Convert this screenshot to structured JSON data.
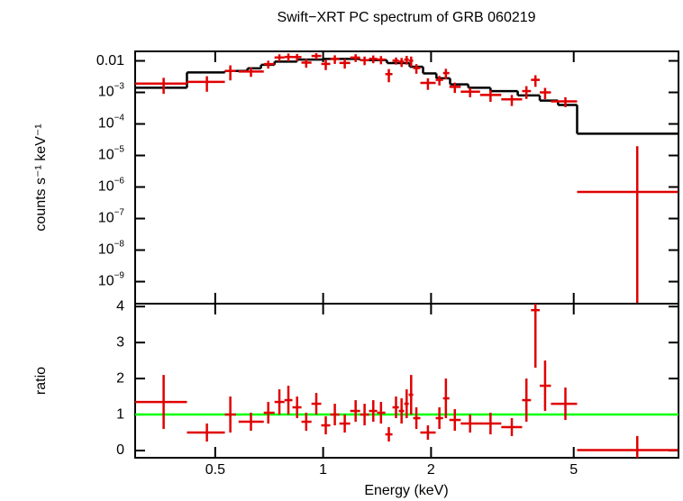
{
  "chart_data": [
    {
      "type": "errorbar",
      "title": "Swift−XRT PC spectrum of GRB 060219",
      "ylabel": "counts s⁻¹ keV⁻¹",
      "xscale": "log",
      "yscale": "log",
      "xlim": [
        0.299,
        9.8
      ],
      "ylim": [
        2e-10,
        0.02
      ],
      "xticks": [
        0.5,
        1,
        2,
        5
      ],
      "xtick_labels": false,
      "yticks": [
        0.01,
        {
          "value": 0.001,
          "label": "10−3"
        },
        {
          "value": 0.0001,
          "label": "10−4"
        },
        {
          "value": 1e-05,
          "label": "10−5"
        },
        {
          "value": 1e-06,
          "label": "10−6"
        },
        {
          "value": 1e-07,
          "label": "10−7"
        },
        {
          "value": 1e-08,
          "label": "10−8"
        },
        {
          "value": 1e-09,
          "label": "10−9"
        }
      ],
      "color": "#e00000",
      "x": [
        0.359,
        0.474,
        0.551,
        0.629,
        0.703,
        0.755,
        0.8,
        0.846,
        0.897,
        0.957,
        1.017,
        1.078,
        1.149,
        1.232,
        1.305,
        1.38,
        1.45,
        1.525,
        1.597,
        1.655,
        1.71,
        1.76,
        1.82,
        1.96,
        2.11,
        2.2,
        2.33,
        2.57,
        2.93,
        3.36,
        3.69,
        3.91,
        4.16,
        4.74,
        7.52
      ],
      "x_low": [
        0.299,
        0.417,
        0.532,
        0.581,
        0.683,
        0.732,
        0.78,
        0.821,
        0.87,
        0.928,
        0.988,
        1.047,
        1.11,
        1.19,
        1.268,
        1.343,
        1.415,
        1.491,
        1.561,
        1.626,
        1.683,
        1.733,
        1.783,
        1.867,
        2.06,
        2.16,
        2.25,
        2.42,
        2.74,
        3.14,
        3.59,
        3.8,
        4.02,
        4.32,
        5.11
      ],
      "x_high": [
        0.417,
        0.532,
        0.571,
        0.683,
        0.732,
        0.78,
        0.821,
        0.87,
        0.928,
        0.988,
        1.047,
        1.11,
        1.19,
        1.268,
        1.343,
        1.415,
        1.491,
        1.561,
        1.626,
        1.683,
        1.733,
        1.783,
        1.867,
        2.06,
        2.16,
        2.25,
        2.42,
        2.74,
        3.14,
        3.59,
        3.8,
        4.02,
        4.32,
        5.11,
        9.77
      ],
      "values": [
        0.0019,
        0.00215,
        0.0048,
        0.0046,
        0.0079,
        0.0128,
        0.0133,
        0.0132,
        0.0088,
        0.0143,
        0.008,
        0.0115,
        0.0086,
        0.0127,
        0.0105,
        0.0116,
        0.011,
        0.0038,
        0.0102,
        0.0094,
        0.011,
        0.0101,
        0.0059,
        0.002,
        0.0025,
        0.0041,
        0.0015,
        0.00105,
        0.00083,
        0.0006,
        0.0011,
        0.0025,
        0.001,
        0.00052,
        7e-07
      ],
      "errors": [
        0.001,
        0.0011,
        0.0024,
        0.0015,
        0.0022,
        0.0033,
        0.0038,
        0.0033,
        0.00275,
        0.0033,
        0.0029,
        0.0035,
        0.0029,
        0.0035,
        0.0032,
        0.0032,
        0.0032,
        0.0017,
        0.0026,
        0.003,
        0.0034,
        0.0036,
        0.002,
        0.0008,
        0.00084,
        0.0015,
        0.00054,
        0.00035,
        0.00033,
        0.00023,
        0.00048,
        0.001,
        0.00039,
        0.00018,
        1.9e-05
      ],
      "model": {
        "color": "#000000",
        "edges": [
          0.299,
          0.417,
          0.532,
          0.615,
          0.671,
          0.732,
          0.846,
          1,
          1.268,
          1.507,
          1.743,
          1.9,
          2.07,
          2.26,
          2.54,
          2.93,
          3.49,
          4.02,
          4.52,
          5.11,
          9.77
        ],
        "values": [
          0.0014,
          0.0043,
          0.0048,
          0.0058,
          0.0075,
          0.0095,
          0.011,
          0.0115,
          0.0105,
          0.0085,
          0.0065,
          0.004,
          0.0028,
          0.0018,
          0.0014,
          0.0011,
          0.0008,
          0.00055,
          0.0004,
          4.9e-05
        ]
      }
    },
    {
      "type": "errorbar",
      "ylabel": "ratio",
      "xlabel": "Energy (keV)",
      "xscale": "log",
      "yscale": "linear",
      "xlim": [
        0.299,
        9.8
      ],
      "ylim": [
        -0.2,
        4.08
      ],
      "xticks": [
        0.5,
        1,
        2,
        5
      ],
      "xtick_labels": true,
      "yticks": [
        0,
        1,
        2,
        3,
        4
      ],
      "color": "#e00000",
      "reference": 1,
      "reference_color": "#00ff00",
      "x": [
        0.359,
        0.474,
        0.551,
        0.629,
        0.703,
        0.755,
        0.8,
        0.846,
        0.897,
        0.957,
        1.017,
        1.078,
        1.149,
        1.232,
        1.305,
        1.38,
        1.45,
        1.525,
        1.597,
        1.655,
        1.71,
        1.76,
        1.82,
        1.96,
        2.11,
        2.2,
        2.33,
        2.57,
        2.93,
        3.36,
        3.69,
        3.91,
        4.16,
        4.74,
        7.52
      ],
      "x_low": [
        0.299,
        0.417,
        0.532,
        0.581,
        0.683,
        0.732,
        0.78,
        0.821,
        0.87,
        0.928,
        0.988,
        1.047,
        1.11,
        1.19,
        1.268,
        1.343,
        1.415,
        1.491,
        1.561,
        1.626,
        1.683,
        1.733,
        1.783,
        1.867,
        2.06,
        2.16,
        2.25,
        2.42,
        2.74,
        3.14,
        3.59,
        3.8,
        4.02,
        4.32,
        5.11
      ],
      "x_high": [
        0.417,
        0.532,
        0.571,
        0.683,
        0.732,
        0.78,
        0.821,
        0.87,
        0.928,
        0.988,
        1.047,
        1.11,
        1.19,
        1.268,
        1.343,
        1.415,
        1.491,
        1.561,
        1.626,
        1.683,
        1.733,
        1.783,
        1.867,
        2.06,
        2.16,
        2.25,
        2.42,
        2.74,
        3.14,
        3.59,
        3.8,
        4.02,
        4.32,
        5.11,
        9.77
      ],
      "values": [
        1.35,
        0.5,
        1.0,
        0.8,
        1.05,
        1.35,
        1.4,
        1.2,
        0.8,
        1.3,
        0.7,
        1.0,
        0.75,
        1.1,
        1.0,
        1.1,
        1.05,
        0.45,
        1.2,
        1.1,
        1.3,
        1.55,
        0.9,
        0.5,
        0.9,
        1.45,
        0.85,
        0.75,
        0.75,
        0.65,
        1.4,
        3.9,
        1.8,
        1.3,
        0.014
      ],
      "errors": [
        0.75,
        0.25,
        0.5,
        0.25,
        0.3,
        0.35,
        0.4,
        0.3,
        0.25,
        0.3,
        0.25,
        0.3,
        0.25,
        0.3,
        0.3,
        0.3,
        0.3,
        0.2,
        0.3,
        0.35,
        0.4,
        0.55,
        0.3,
        0.2,
        0.3,
        0.55,
        0.3,
        0.25,
        0.3,
        0.25,
        0.6,
        1.6,
        0.7,
        0.45,
        0.39
      ]
    }
  ]
}
